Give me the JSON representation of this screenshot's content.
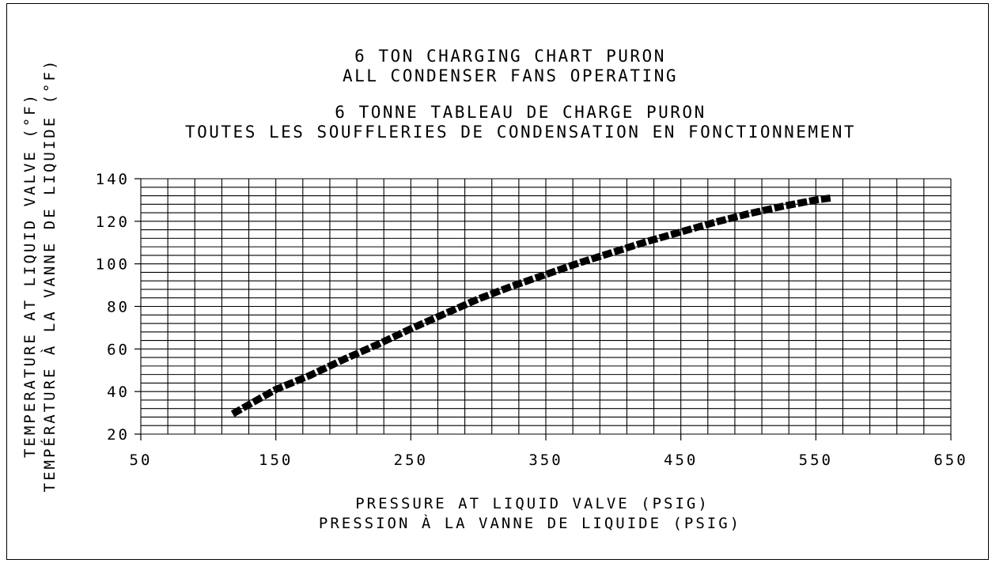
{
  "chart_data": {
    "type": "line",
    "title_lines": [
      "6 TON CHARGING CHART PURON",
      "ALL CONDENSER FANS OPERATING",
      "6 TONNE TABLEAU DE CHARGE PURON",
      "TOUTES LES SOUFFLERIES DE CONDENSATION EN FONCTIONNEMENT"
    ],
    "xlabel_lines": [
      "PRESSURE AT LIQUID VALVE (PSIG)",
      "PRESSION À LA VANNE DE LIQUIDE (PSIG)"
    ],
    "ylabel_lines": [
      "TEMPERATURE AT LIQUID VALVE (°F)",
      "TEMPÉRATURE À LA VANNE DE LIQUIDE (°F)"
    ],
    "xlim": [
      50,
      650
    ],
    "ylim": [
      20,
      140
    ],
    "xticks": [
      "50",
      "150",
      "250",
      "350",
      "450",
      "550",
      "650"
    ],
    "yticks": [
      "20",
      "40",
      "60",
      "80",
      "100",
      "120",
      "140"
    ],
    "grid": true,
    "grid_x_step": 20,
    "grid_y_step": 4,
    "line_color": "#000000",
    "series": [
      {
        "x": [
          118,
          150,
          175,
          200,
          225,
          250,
          275,
          300,
          325,
          350,
          375,
          400,
          425,
          450,
          475,
          500,
          525,
          550,
          562
        ],
        "y": [
          29.5,
          41,
          47.5,
          55,
          62,
          69.5,
          76.5,
          83.5,
          89.5,
          95,
          100.5,
          105.5,
          110.5,
          115,
          119.5,
          123.5,
          127,
          130,
          131
        ]
      }
    ]
  }
}
